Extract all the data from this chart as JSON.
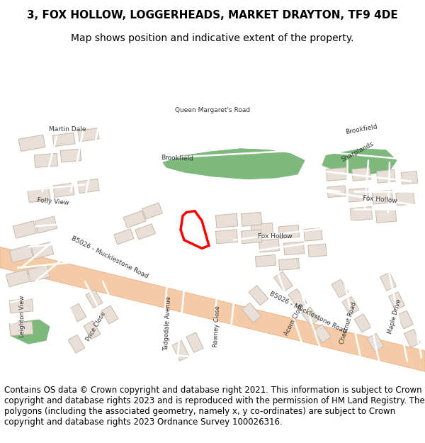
{
  "title_line1": "3, FOX HOLLOW, LOGGERHEADS, MARKET DRAYTON, TF9 4DE",
  "title_line2": "Map shows position and indicative extent of the property.",
  "copyright_text": "Contains OS data © Crown copyright and database right 2021. This information is subject to Crown copyright and database rights 2023 and is reproduced with the permission of HM Land Registry. The polygons (including the associated geometry, namely x, y co-ordinates) are subject to Crown copyright and database rights 2023 Ordnance Survey 100026316.",
  "background_color": "#ffffff",
  "map_bg_color": "#f2efe9",
  "road_color": "#f5cba7",
  "building_color": "#e8e0d8",
  "building_stroke": "#c8b8a8",
  "green_color": "#7db87d",
  "road_stroke": "#e8a87a",
  "plot_color": "#ff0000",
  "plot_linewidth": 2.5,
  "title_fontsize": 11,
  "subtitle_fontsize": 10,
  "copyright_fontsize": 8.5,
  "label_fontsize": 6.5,
  "label_color": "#333333"
}
